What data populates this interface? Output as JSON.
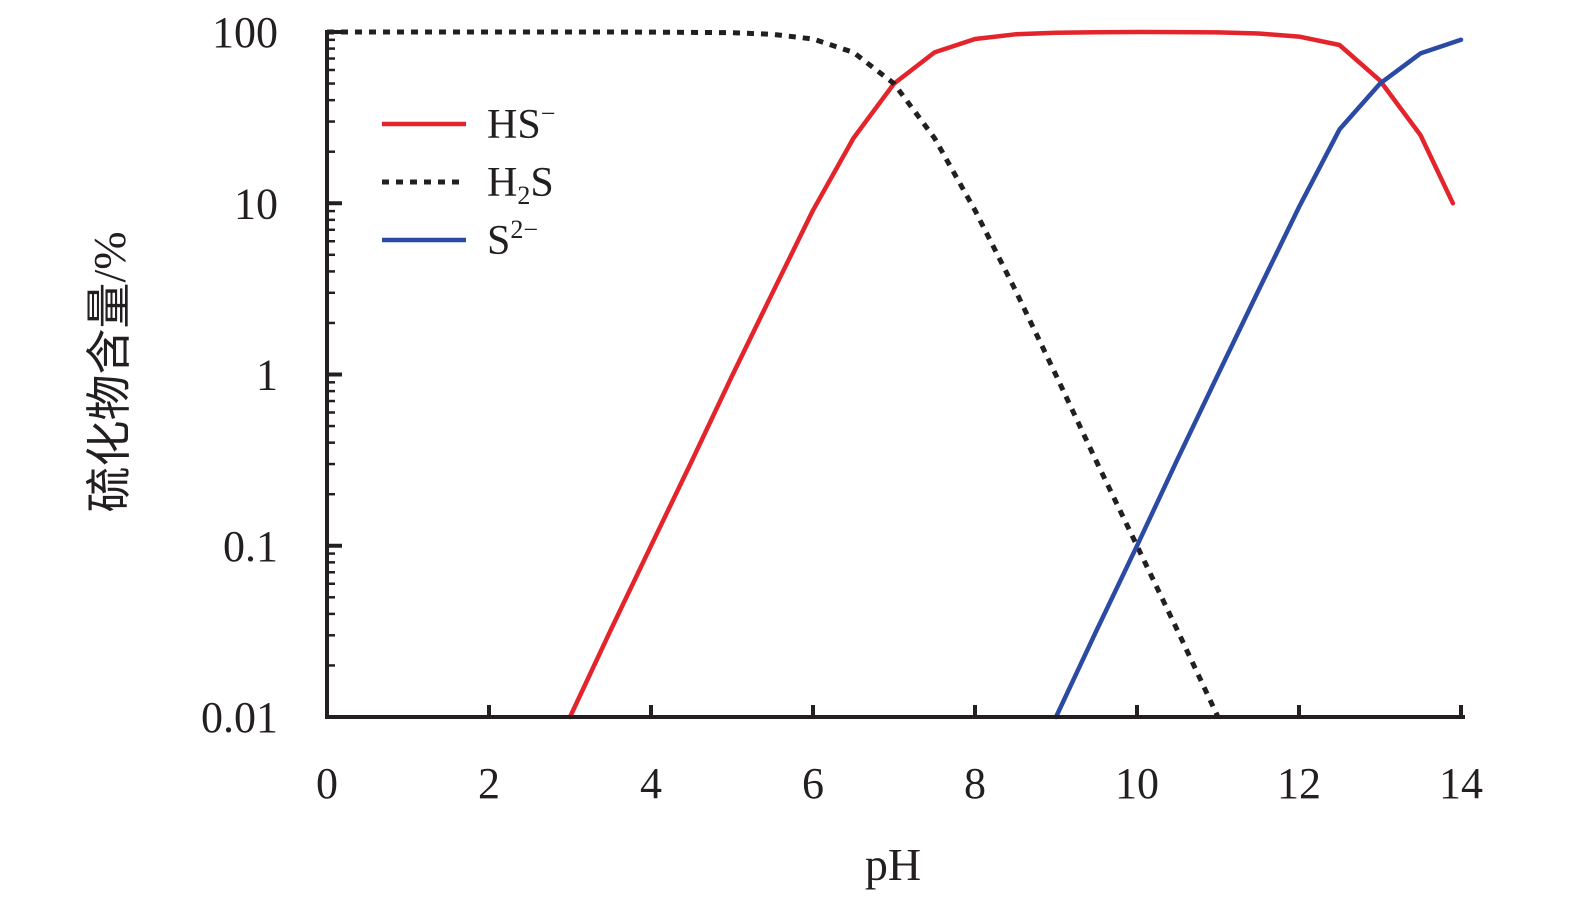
{
  "chart_data": {
    "type": "line",
    "title": "",
    "xlabel": "pH",
    "ylabel": "硫化物含量/%",
    "yscale": "log",
    "xlim": [
      0,
      14
    ],
    "ylim": [
      0.01,
      100
    ],
    "xticks": [
      "0",
      "2",
      "4",
      "6",
      "8",
      "10",
      "12",
      "14"
    ],
    "yticks": [
      "0.01",
      "0.1",
      "1",
      "10",
      "100"
    ],
    "grid": false,
    "legend_position": "top-left",
    "series": [
      {
        "name": "HS",
        "name_sup": "−",
        "name_sub": "",
        "name_tail": "",
        "color": "#e3242b",
        "dash": "solid",
        "x": [
          3.0,
          3.5,
          4.0,
          4.5,
          5.0,
          5.5,
          6.0,
          6.5,
          7.0,
          7.5,
          8.0,
          8.5,
          9.0,
          9.5,
          10.0,
          10.5,
          11.0,
          11.5,
          12.0,
          12.5,
          13.0,
          13.5,
          13.9
        ],
        "y": [
          0.01,
          0.032,
          0.1,
          0.31,
          0.98,
          3.0,
          9.1,
          24,
          50,
          76,
          91,
          97,
          99,
          99.7,
          100,
          99.8,
          99.5,
          98,
          94,
          84,
          52,
          25,
          10
        ]
      },
      {
        "name": "H",
        "name_sup": "",
        "name_sub": "2",
        "name_tail": "S",
        "color": "#231f20",
        "dash": "dotted",
        "x": [
          0,
          1,
          2,
          3,
          4,
          5,
          5.5,
          6,
          6.5,
          7.0,
          7.5,
          8.0,
          8.5,
          9.0,
          9.5,
          10.0,
          10.5,
          11.0
        ],
        "y": [
          100,
          100,
          100,
          99.99,
          99.9,
          99,
          97,
          91,
          76,
          50,
          24,
          9.1,
          3.1,
          0.99,
          0.31,
          0.1,
          0.032,
          0.01
        ]
      },
      {
        "name": "S",
        "name_sup": "2−",
        "name_sub": "",
        "name_tail": "",
        "color": "#2b4aa3",
        "dash": "solid",
        "x": [
          9.0,
          9.5,
          10.0,
          10.5,
          11.0,
          11.5,
          12.0,
          12.5,
          13.0,
          13.5,
          14.0
        ],
        "y": [
          0.01,
          0.032,
          0.1,
          0.32,
          1.0,
          3.1,
          9.5,
          27,
          50,
          75,
          90
        ]
      }
    ]
  }
}
